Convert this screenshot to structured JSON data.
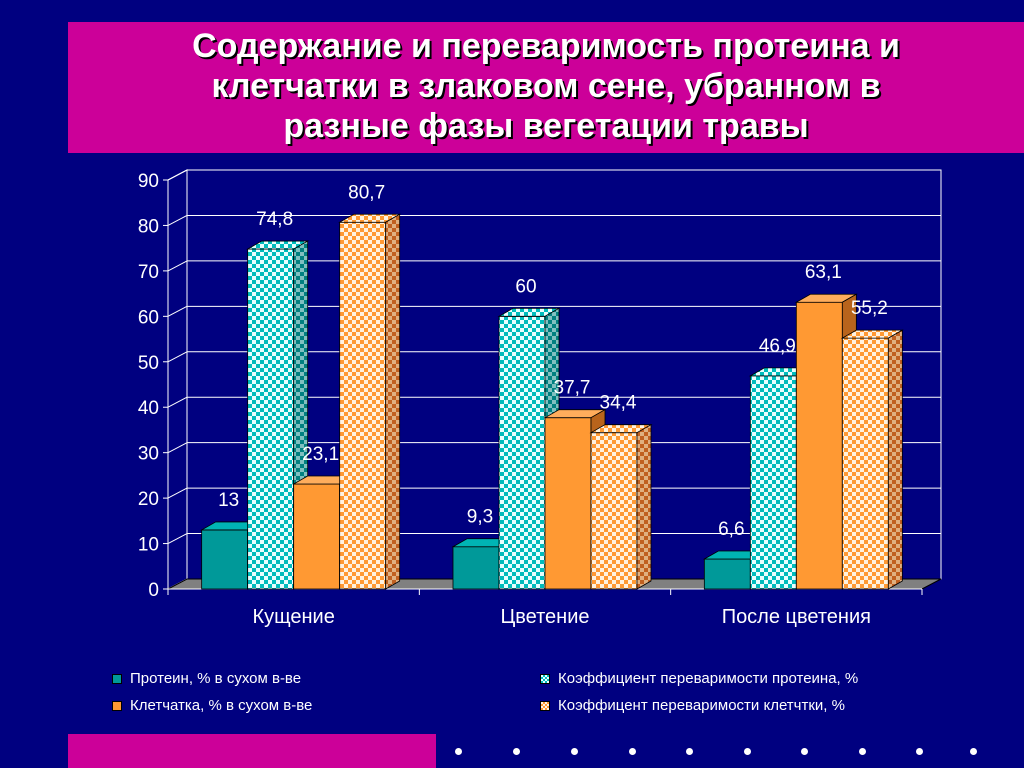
{
  "title": "Содержание и переваримость протеина и\nклетчатки в злаковом сене, убранном в\nразные фазы вегетации травы",
  "chart_data": {
    "type": "bar",
    "categories": [
      "Кущение",
      "Цветение",
      "После цветения"
    ],
    "series": [
      {
        "name": "Протеин, % в сухом в-ве",
        "values": [
          13,
          9.3,
          6.6
        ],
        "labels": [
          "13",
          "9,3",
          "6,6"
        ],
        "color": "#009999",
        "pattern": "solid"
      },
      {
        "name": "Коэффициент переваримости протеина, %",
        "values": [
          74.8,
          60,
          46.9
        ],
        "labels": [
          "74,8",
          "60",
          "46,9"
        ],
        "color": "#00c0c0",
        "pattern": "check"
      },
      {
        "name": "Клетчатка, % в сухом в-ве",
        "values": [
          23.1,
          37.7,
          63.1
        ],
        "labels": [
          "23,1",
          "37,7",
          "63,1"
        ],
        "color": "#ff9933",
        "pattern": "solid"
      },
      {
        "name": "Коэффицент переваримости клетчтки, %",
        "values": [
          80.7,
          34.4,
          55.2
        ],
        "labels": [
          "80,7",
          "34,4",
          "55,2"
        ],
        "color": "#ffc080",
        "pattern": "check"
      }
    ],
    "y_ticks": [
      "0",
      "10",
      "20",
      "30",
      "40",
      "50",
      "60",
      "70",
      "80",
      "90"
    ],
    "ylim": [
      0,
      90
    ],
    "grid": true,
    "legend_position": "bottom"
  }
}
